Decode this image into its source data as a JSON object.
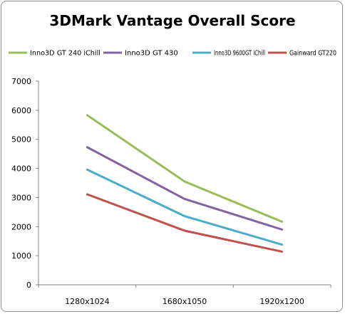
{
  "chart_data": {
    "type": "line",
    "title": "3DMark Vantage Overall Score",
    "categories": [
      "1280x1024",
      "1680x1050",
      "1920x1200"
    ],
    "ylim": [
      0,
      7000
    ],
    "ytick_step": 1000,
    "grid": false,
    "legend_position": "top",
    "series": [
      {
        "name": "Inno3D GT 240 iChill",
        "color": "#9bbb59",
        "values": [
          5830,
          3550,
          2170
        ]
      },
      {
        "name": "Inno3D GT 430",
        "color": "#8064a2",
        "values": [
          4730,
          2950,
          1900
        ]
      },
      {
        "name": "Inno3D 9600GT iChill",
        "color": "#4bacc6",
        "values": [
          3960,
          2360,
          1380
        ]
      },
      {
        "name": "Gainward GT220",
        "color": "#c0504d",
        "values": [
          3110,
          1860,
          1140
        ]
      }
    ]
  }
}
